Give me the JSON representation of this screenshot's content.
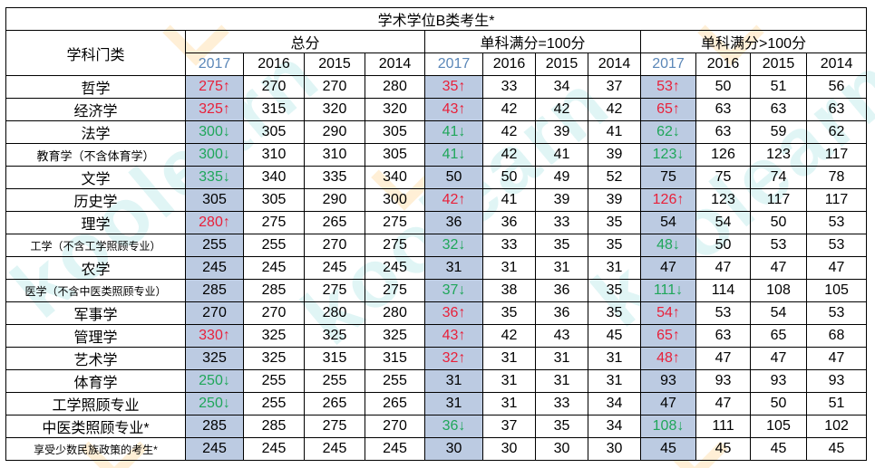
{
  "title": "学术学位B类考生*",
  "header": {
    "category_label": "学科门类",
    "groups": [
      "总分",
      "单科满分=100分",
      "单科满分>100分"
    ],
    "years": [
      "2017",
      "2016",
      "2015",
      "2014"
    ]
  },
  "colors": {
    "up": "#e8203a",
    "down": "#1fa65a",
    "highlight_col": "#bccbe2",
    "year_2017": "#5b87b8"
  },
  "rows": [
    {
      "name": "哲学",
      "total": [
        "275↑",
        "270",
        "270",
        "280"
      ],
      "eq100": [
        "35↑",
        "33",
        "34",
        "37"
      ],
      "gt100": [
        "53↑",
        "50",
        "51",
        "56"
      ]
    },
    {
      "name": "经济学",
      "total": [
        "325↑",
        "315",
        "320",
        "320"
      ],
      "eq100": [
        "43↑",
        "42",
        "42",
        "42"
      ],
      "gt100": [
        "65↑",
        "63",
        "63",
        "63"
      ]
    },
    {
      "name": "法学",
      "total": [
        "300↓",
        "305",
        "290",
        "305"
      ],
      "eq100": [
        "41↓",
        "42",
        "39",
        "41"
      ],
      "gt100": [
        "62↓",
        "63",
        "59",
        "62"
      ]
    },
    {
      "name": "教育学（不含体育学）",
      "total": [
        "300↓",
        "310",
        "310",
        "305"
      ],
      "eq100": [
        "41↓",
        "42",
        "41",
        "39"
      ],
      "gt100": [
        "123↓",
        "126",
        "123",
        "117"
      ]
    },
    {
      "name": "文学",
      "total": [
        "335↓",
        "340",
        "335",
        "340"
      ],
      "eq100": [
        "50",
        "50",
        "49",
        "52"
      ],
      "gt100": [
        "75",
        "75",
        "74",
        "78"
      ]
    },
    {
      "name": "历史学",
      "total": [
        "305",
        "305",
        "290",
        "300"
      ],
      "eq100": [
        "42↑",
        "41",
        "39",
        "39"
      ],
      "gt100": [
        "126↑",
        "123",
        "117",
        "117"
      ]
    },
    {
      "name": "理学",
      "total": [
        "280↑",
        "275",
        "265",
        "275"
      ],
      "eq100": [
        "36",
        "36",
        "33",
        "35"
      ],
      "gt100": [
        "54",
        "54",
        "50",
        "53"
      ]
    },
    {
      "name": "工学（不含工学照顾专业）",
      "total": [
        "255",
        "255",
        "270",
        "275"
      ],
      "eq100": [
        "32↓",
        "33",
        "35",
        "35"
      ],
      "gt100": [
        "48↓",
        "50",
        "53",
        "53"
      ]
    },
    {
      "name": "农学",
      "total": [
        "245",
        "245",
        "245",
        "245"
      ],
      "eq100": [
        "31",
        "31",
        "31",
        "31"
      ],
      "gt100": [
        "47",
        "47",
        "47",
        "47"
      ]
    },
    {
      "name": "医学（不含中医类照顾专业）",
      "total": [
        "285",
        "285",
        "275",
        "275"
      ],
      "eq100": [
        "37↓",
        "38",
        "36",
        "35"
      ],
      "gt100": [
        "111↓",
        "114",
        "108",
        "105"
      ]
    },
    {
      "name": "军事学",
      "total": [
        "270",
        "270",
        "280",
        "280"
      ],
      "eq100": [
        "36↑",
        "35",
        "36",
        "35"
      ],
      "gt100": [
        "54↑",
        "53",
        "54",
        "53"
      ]
    },
    {
      "name": "管理学",
      "total": [
        "330↑",
        "325",
        "325",
        "325"
      ],
      "eq100": [
        "43↑",
        "42",
        "43",
        "45"
      ],
      "gt100": [
        "65↑",
        "63",
        "65",
        "68"
      ]
    },
    {
      "name": "艺术学",
      "total": [
        "325",
        "325",
        "315",
        "315"
      ],
      "eq100": [
        "32↑",
        "31",
        "31",
        "31"
      ],
      "gt100": [
        "48↑",
        "47",
        "47",
        "47"
      ]
    },
    {
      "name": "体育学",
      "total": [
        "250↓",
        "255",
        "255",
        "255"
      ],
      "eq100": [
        "31",
        "31",
        "31",
        "31"
      ],
      "gt100": [
        "93",
        "93",
        "93",
        "93"
      ]
    },
    {
      "name": "工学照顾专业",
      "total": [
        "250↓",
        "255",
        "265",
        "265"
      ],
      "eq100": [
        "31",
        "31",
        "33",
        "34"
      ],
      "gt100": [
        "47",
        "47",
        "50",
        "51"
      ]
    },
    {
      "name": "中医类照顾专业*",
      "total": [
        "285",
        "285",
        "275",
        "270"
      ],
      "eq100": [
        "36↓",
        "37",
        "35",
        "34"
      ],
      "gt100": [
        "108↓",
        "111",
        "105",
        "102"
      ]
    },
    {
      "name": "享受少数民族政策的考生*",
      "total": [
        "245",
        "245",
        "245",
        "245"
      ],
      "eq100": [
        "30",
        "30",
        "30",
        "30"
      ],
      "gt100": [
        "45",
        "45",
        "45",
        "45"
      ]
    }
  ]
}
